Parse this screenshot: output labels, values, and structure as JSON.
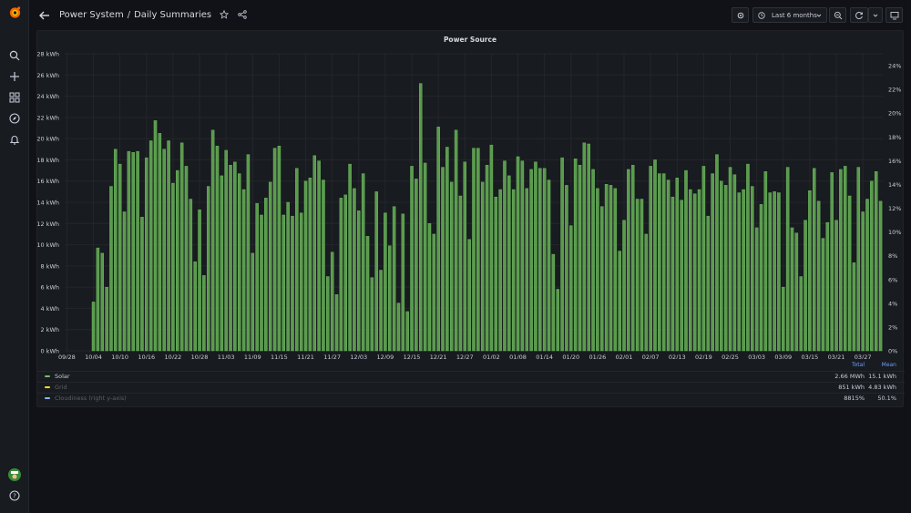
{
  "breadcrumb": {
    "folder": "Power System",
    "separator": "/",
    "dashboard": "Daily Summaries"
  },
  "toolbar": {
    "time_range": "Last 6 months"
  },
  "panel": {
    "title": "Power Source",
    "legend": {
      "headers": {
        "total": "Total",
        "mean": "Mean"
      },
      "rows": [
        {
          "name": "Solar",
          "suffix": "",
          "color": "#73bf69",
          "total": "2.66 MWh",
          "mean": "15.1 kWh"
        },
        {
          "name": "Grid",
          "suffix": "",
          "color": "#fade2a",
          "total": "851 kWh",
          "mean": "4.83 kWh"
        },
        {
          "name": "Cloudiness",
          "suffix": " (right y-axis)",
          "color": "#8ab8ff",
          "total": "8815%",
          "mean": "50.1%"
        }
      ]
    }
  },
  "colors": {
    "solar": "#73bf69",
    "solar_bar": "#5a9b4c",
    "grid": "#fade2a",
    "cloudiness": "#8ab8ff",
    "background": "#111217",
    "panel": "#181b1f"
  },
  "icons": {
    "logo": "grafana-logo",
    "sidebar": [
      "search-icon",
      "plus-icon",
      "dashboards-icon",
      "compass-icon",
      "bell-icon"
    ],
    "bottom": [
      "avatar",
      "help-icon"
    ]
  },
  "chart_data": {
    "type": "bar",
    "title": "Power Source",
    "ylabel_unit": "kWh",
    "ylim": [
      0,
      28
    ],
    "y_ticks": [
      "0 kWh",
      "2 kWh",
      "4 kWh",
      "6 kWh",
      "8 kWh",
      "10 kWh",
      "12 kWh",
      "14 kWh",
      "16 kWh",
      "18 kWh",
      "20 kWh",
      "22 kWh",
      "24 kWh",
      "26 kWh",
      "28 kWh"
    ],
    "y2lim": [
      0,
      25
    ],
    "y2_ticks": [
      "0%",
      "2%",
      "4%",
      "6%",
      "8%",
      "10%",
      "12%",
      "14%",
      "16%",
      "18%",
      "20%",
      "22%",
      "24%"
    ],
    "x_ticks": [
      "09/28",
      "10/04",
      "10/10",
      "10/16",
      "10/22",
      "10/28",
      "11/03",
      "11/09",
      "11/15",
      "11/21",
      "11/27",
      "12/03",
      "12/09",
      "12/15",
      "12/21",
      "12/27",
      "01/02",
      "01/08",
      "01/14",
      "01/20",
      "01/26",
      "02/01",
      "02/07",
      "02/13",
      "02/19",
      "02/25",
      "03/03",
      "03/09",
      "03/15",
      "03/21",
      "03/27"
    ],
    "grid": true,
    "legend_placement": "bottom",
    "series": [
      {
        "name": "Solar",
        "values": [
          4.6,
          9.7,
          9.2,
          6.0,
          15.5,
          19.0,
          17.6,
          13.1,
          18.8,
          18.7,
          18.8,
          12.6,
          18.2,
          19.8,
          21.7,
          20.5,
          19.0,
          19.8,
          15.8,
          17.0,
          19.6,
          17.4,
          14.3,
          8.4,
          13.3,
          7.1,
          15.5,
          20.8,
          19.3,
          16.5,
          18.9,
          17.5,
          17.8,
          16.7,
          15.2,
          18.5,
          9.2,
          13.9,
          12.8,
          14.4,
          15.9,
          19.1,
          19.3,
          12.8,
          14.0,
          12.7,
          17.2,
          13.0,
          16.0,
          16.3,
          18.4,
          17.9,
          16.1,
          7.0,
          9.3,
          5.3,
          14.4,
          14.7,
          17.6,
          15.3,
          13.2,
          16.7,
          10.8,
          6.9,
          15.0,
          7.6,
          13.0,
          9.9,
          13.6,
          4.5,
          12.9,
          3.7,
          17.4,
          16.2,
          25.2,
          17.7,
          12.0,
          11.0,
          21.1,
          17.3,
          19.2,
          15.9,
          20.8,
          14.6,
          17.8,
          10.5,
          19.1,
          19.1,
          15.9,
          17.5,
          19.4,
          14.5,
          15.2,
          17.9,
          16.5,
          15.2,
          18.3,
          17.9,
          15.3,
          17.1,
          17.8,
          17.2,
          17.2,
          16.1,
          9.1,
          5.8,
          18.2,
          15.6,
          11.8,
          18.1,
          17.5,
          19.6,
          19.5,
          17.1,
          15.3,
          13.6,
          15.7,
          15.6,
          15.3,
          9.4,
          12.3,
          17.1,
          17.5,
          14.3,
          14.3,
          11.0,
          17.4,
          18.0,
          16.7,
          16.7,
          16.1,
          14.5,
          16.3,
          14.2,
          17.0,
          15.2,
          14.8,
          15.2,
          17.4,
          12.7,
          16.7,
          18.5,
          16.0,
          15.6,
          17.3,
          16.6,
          14.9,
          15.2,
          17.6,
          15.5,
          11.6,
          13.8,
          16.9,
          14.9,
          15.0,
          14.9,
          6.0,
          17.3,
          11.6,
          11.1,
          7.0,
          12.3,
          15.1,
          17.2,
          14.1,
          10.6,
          12.1,
          16.8,
          12.3,
          17.1,
          17.4,
          14.6,
          8.3,
          17.3,
          13.1,
          14.3,
          16.0,
          16.9,
          14.1
        ]
      }
    ]
  }
}
